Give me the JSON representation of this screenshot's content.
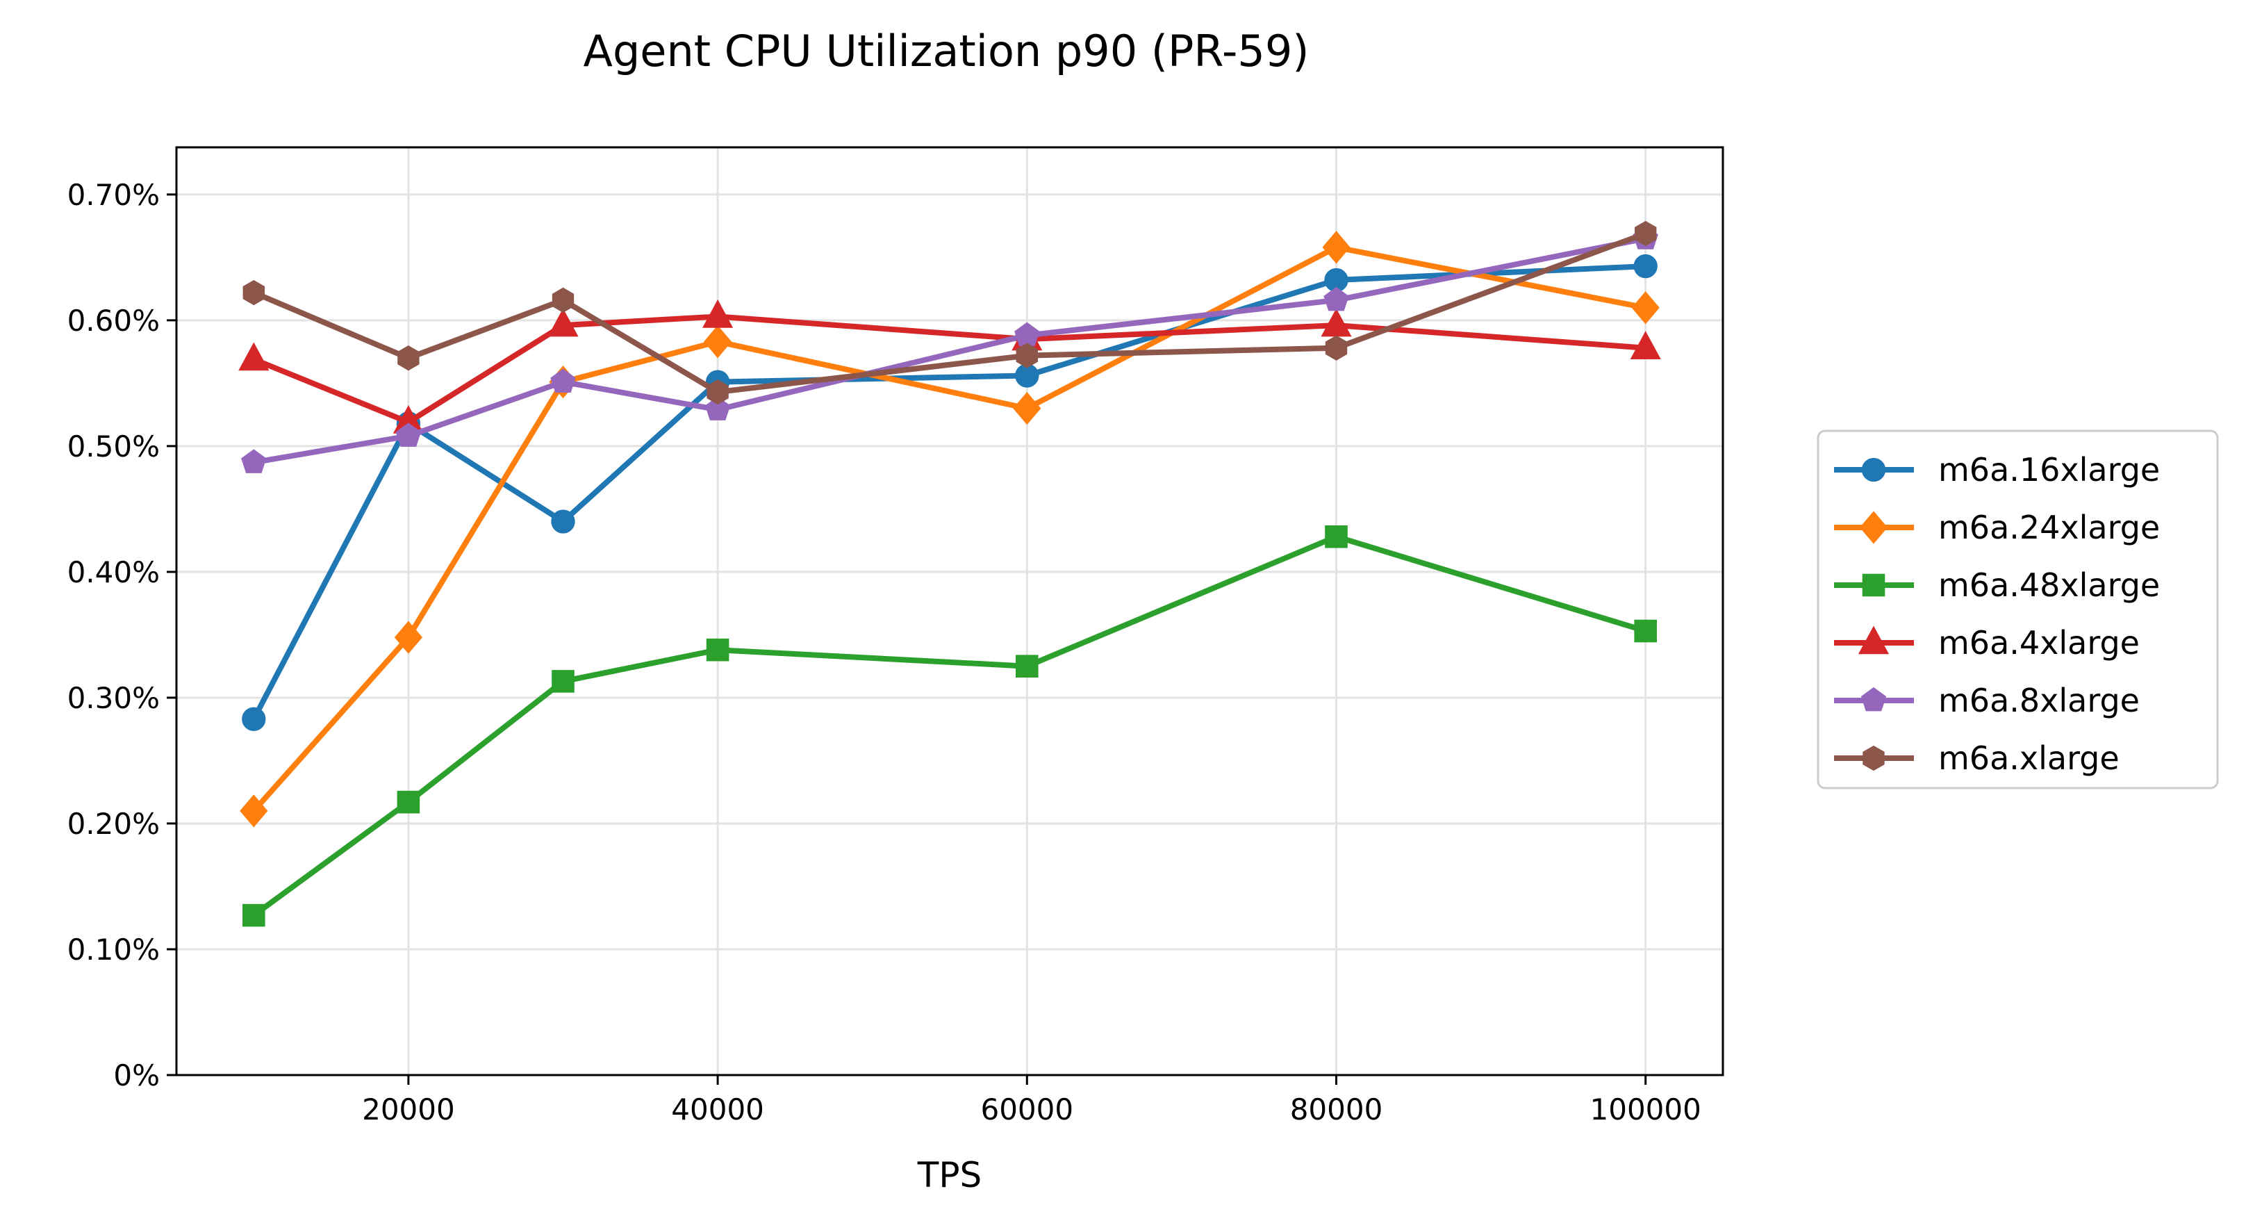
{
  "chart_data": {
    "type": "line",
    "title": "Agent CPU Utilization p90 (PR-59)",
    "xlabel": "TPS",
    "ylabel": "",
    "x": [
      10000,
      20000,
      30000,
      40000,
      60000,
      80000,
      100000
    ],
    "xlim": [
      5000,
      105000
    ],
    "ylim": [
      0,
      0.7375
    ],
    "x_ticks": [
      20000,
      40000,
      60000,
      80000,
      100000
    ],
    "x_tick_labels": [
      "20000",
      "40000",
      "60000",
      "80000",
      "100000"
    ],
    "y_ticks": [
      0,
      0.1,
      0.2,
      0.3,
      0.4,
      0.5,
      0.6,
      0.7
    ],
    "y_tick_labels": [
      "0%",
      "0.10%",
      "0.20%",
      "0.30%",
      "0.40%",
      "0.50%",
      "0.60%",
      "0.70%"
    ],
    "grid": true,
    "legend_position": "right-outside",
    "series": [
      {
        "name": "m6a.16xlarge",
        "color": "#1f77b4",
        "marker": "circle",
        "values": [
          0.283,
          0.518,
          0.44,
          0.551,
          0.556,
          0.632,
          0.643
        ]
      },
      {
        "name": "m6a.24xlarge",
        "color": "#ff7f0e",
        "marker": "diamond",
        "values": [
          0.21,
          0.348,
          0.551,
          0.583,
          0.53,
          0.658,
          0.61
        ]
      },
      {
        "name": "m6a.48xlarge",
        "color": "#2ca02c",
        "marker": "square",
        "values": [
          0.127,
          0.217,
          0.313,
          0.338,
          0.325,
          0.428,
          0.353
        ]
      },
      {
        "name": "m6a.4xlarge",
        "color": "#d62728",
        "marker": "triangle",
        "values": [
          0.569,
          0.519,
          0.596,
          0.603,
          0.585,
          0.596,
          0.578
        ]
      },
      {
        "name": "m6a.8xlarge",
        "color": "#9467bd",
        "marker": "pentagon",
        "values": [
          0.487,
          0.508,
          0.551,
          0.529,
          0.588,
          0.616,
          0.665
        ]
      },
      {
        "name": "m6a.xlarge",
        "color": "#8c564b",
        "marker": "hexagon",
        "values": [
          0.622,
          0.57,
          0.616,
          0.543,
          0.572,
          0.578,
          0.669
        ]
      }
    ]
  }
}
